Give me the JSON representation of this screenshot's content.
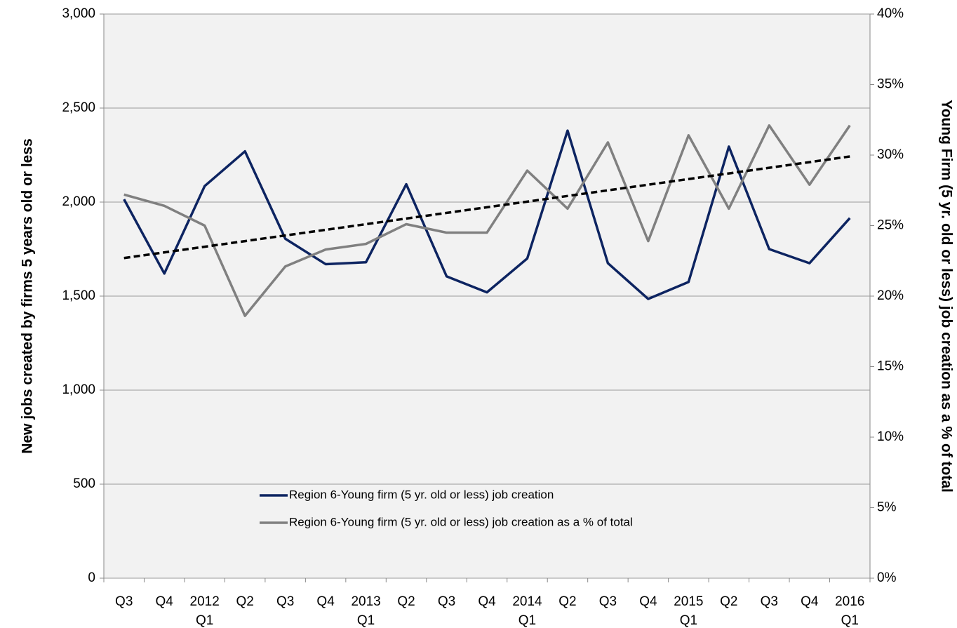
{
  "chart_data": {
    "type": "line",
    "y_label": "New jobs created by firms 5 years old or less",
    "y2_label": "Young Firm (5 yr. old or less) job creation as a % of total",
    "categories": [
      "Q3",
      "Q4",
      "2012 Q1",
      "Q2",
      "Q3",
      "Q4",
      "2013 Q1",
      "Q2",
      "Q3",
      "Q4",
      "2014 Q1",
      "Q2",
      "Q3",
      "Q4",
      "2015 Q1",
      "Q2",
      "Q3",
      "Q4",
      "2016 Q1"
    ],
    "series": [
      {
        "name": "Region 6-Young firm (5 yr. old or less) job creation",
        "color": "#0d2461",
        "values": [
          2015,
          1620,
          2085,
          2270,
          1805,
          1670,
          1680,
          2095,
          1605,
          1520,
          1700,
          2380,
          1675,
          1485,
          1575,
          2295,
          1750,
          1675,
          1915
        ]
      },
      {
        "name": "Region 6-Young firm (5 yr. old or less) job creation as a % of total",
        "color": "#808080",
        "axis": "y2",
        "values": [
          27.2,
          26.4,
          25.0,
          18.6,
          22.1,
          23.3,
          23.7,
          25.1,
          24.5,
          24.5,
          28.9,
          26.2,
          30.9,
          23.9,
          31.4,
          26.2,
          32.1,
          27.9,
          32.1
        ]
      }
    ],
    "trendline": {
      "axis": "y2",
      "color": "#000000",
      "dashed": true,
      "values": [
        22.7,
        29.9
      ]
    },
    "ylim": [
      0,
      3000
    ],
    "yticks": [
      0,
      500,
      {
        "value": 1000,
        "label": "1,000"
      },
      {
        "value": 1500,
        "label": "1,500"
      },
      {
        "value": 2000,
        "label": "2,000"
      },
      {
        "value": 2500,
        "label": "2,500"
      },
      {
        "value": 3000,
        "label": "3,000"
      }
    ],
    "y2lim": [
      0,
      40
    ],
    "y2ticks": [
      {
        "value": 0,
        "label": "0%"
      },
      {
        "value": 5,
        "label": "5%"
      },
      {
        "value": 10,
        "label": "10%"
      },
      {
        "value": 15,
        "label": "15%"
      },
      {
        "value": 20,
        "label": "20%"
      },
      {
        "value": 25,
        "label": "25%"
      },
      {
        "value": 30,
        "label": "30%"
      },
      {
        "value": 35,
        "label": "35%"
      },
      {
        "value": 40,
        "label": "40%"
      }
    ],
    "grid": true,
    "legend": "bottom"
  }
}
